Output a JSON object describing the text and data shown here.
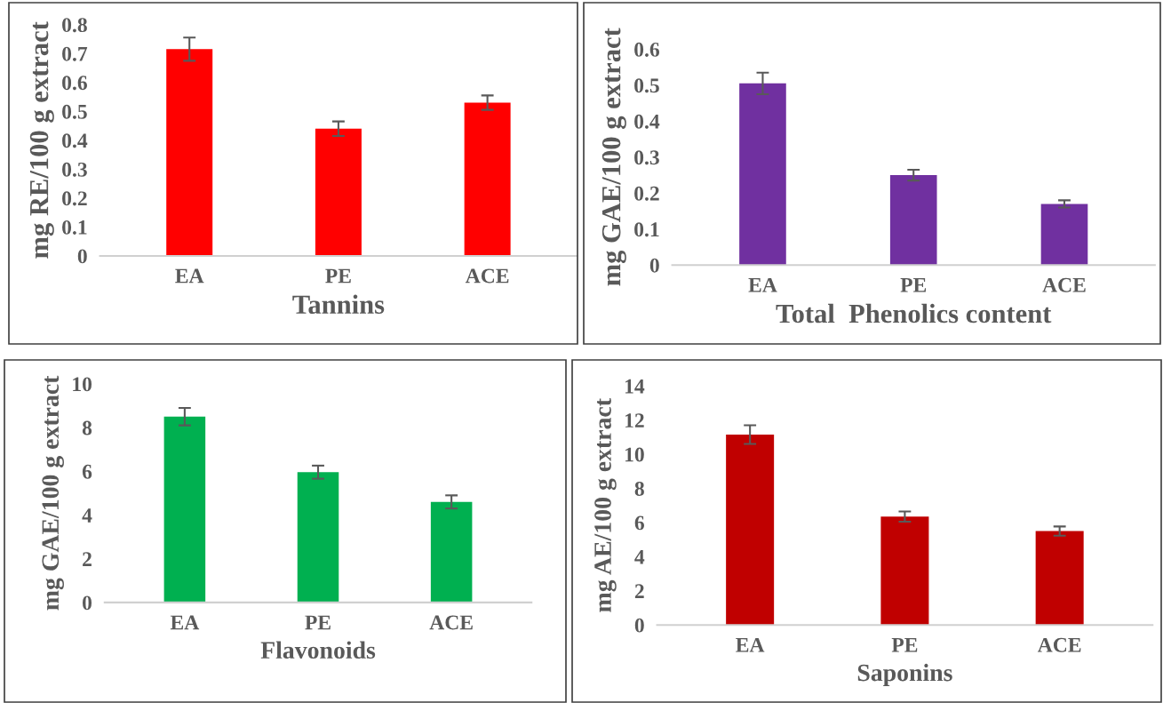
{
  "chart_data": [
    {
      "type": "bar",
      "xlabel": "Tannins",
      "ylabel": "mg RE/100 g extract",
      "categories": [
        "EA",
        "PE",
        "ACE"
      ],
      "values": [
        0.715,
        0.44,
        0.53
      ],
      "errors": [
        0.04,
        0.025,
        0.025
      ],
      "color": "#ff0000",
      "ylim": [
        0,
        0.8
      ],
      "yticks": [
        0,
        0.1,
        0.2,
        0.3,
        0.4,
        0.5,
        0.6,
        0.7,
        0.8
      ]
    },
    {
      "type": "bar",
      "xlabel": "Total  Phenolics content",
      "ylabel": "mg GAE/100 g extract",
      "categories": [
        "EA",
        "PE",
        "ACE"
      ],
      "values": [
        0.505,
        0.25,
        0.17
      ],
      "errors": [
        0.03,
        0.015,
        0.01
      ],
      "color": "#7030a0",
      "ylim": [
        0,
        0.6
      ],
      "yticks": [
        0,
        0.1,
        0.2,
        0.3,
        0.4,
        0.5,
        0.6
      ]
    },
    {
      "type": "bar",
      "xlabel": "Flavonoids",
      "ylabel": "mg GAE/100 g extract",
      "categories": [
        "EA",
        "PE",
        "ACE"
      ],
      "values": [
        8.5,
        5.96,
        4.6
      ],
      "errors": [
        0.4,
        0.3,
        0.3
      ],
      "color": "#00b050",
      "ylim": [
        0,
        10
      ],
      "yticks": [
        0,
        2,
        4,
        6,
        8,
        10
      ]
    },
    {
      "type": "bar",
      "xlabel": "Saponins",
      "ylabel": "mg AE/100 g extract",
      "categories": [
        "EA",
        "PE",
        "ACE"
      ],
      "values": [
        11.15,
        6.35,
        5.5
      ],
      "errors": [
        0.55,
        0.3,
        0.27
      ],
      "color": "#c00000",
      "ylim": [
        0,
        14
      ],
      "yticks": [
        0,
        2,
        4,
        6,
        8,
        10,
        12,
        14
      ]
    }
  ]
}
